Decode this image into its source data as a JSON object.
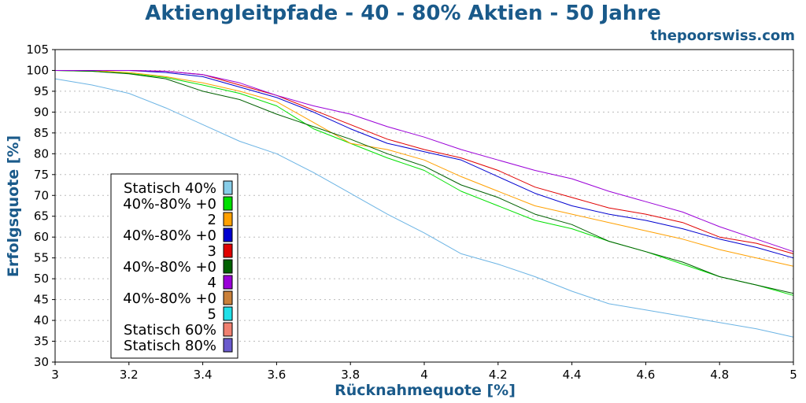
{
  "header": {
    "title": "Aktiengleitpfade - 40 - 80% Aktien - 50 Jahre",
    "brand": "thepoorswiss.com"
  },
  "chart_data": {
    "type": "line",
    "title": "Aktiengleitpfade - 40 - 80% Aktien - 50 Jahre",
    "xlabel": "Rücknahmequote [%]",
    "ylabel": "Erfolgsquote [%]",
    "xlim": [
      3,
      5
    ],
    "ylim": [
      30,
      105
    ],
    "grid": true,
    "legend_position": "lower-left",
    "x_ticks": [
      "3",
      "3.2",
      "3.4",
      "3.6",
      "3.8",
      "4",
      "4.2",
      "4.4",
      "4.6",
      "4.8",
      "5"
    ],
    "y_ticks": [
      "30",
      "35",
      "40",
      "45",
      "50",
      "55",
      "60",
      "65",
      "70",
      "75",
      "80",
      "85",
      "90",
      "95",
      "100",
      "105"
    ],
    "x": [
      3.0,
      3.1,
      3.2,
      3.3,
      3.4,
      3.5,
      3.6,
      3.7,
      3.8,
      3.9,
      4.0,
      4.1,
      4.2,
      4.3,
      4.4,
      4.5,
      4.6,
      4.7,
      4.8,
      4.9,
      5.0
    ],
    "legend_lines": [
      "Statisch 40%",
      "40%-80% +0",
      "2",
      "40%-80% +0",
      "3",
      "40%-80% +0",
      "4",
      "40%-80% +0",
      "5",
      "Statisch 60%",
      "Statisch 80%"
    ],
    "series": [
      {
        "name": "Statisch 40%",
        "color": "#6cb4e4",
        "values": [
          98,
          96.5,
          94.5,
          91,
          87,
          83,
          80,
          75.5,
          70.5,
          65.5,
          61,
          56,
          53.5,
          50.5,
          47,
          44,
          42.5,
          41,
          39.5,
          38,
          36
        ]
      },
      {
        "name": "40%-80% +0 2",
        "color": "#00e000",
        "values": [
          100,
          99.8,
          99.3,
          98.3,
          96.5,
          94.5,
          91.5,
          86,
          82.5,
          79,
          76,
          71,
          67.5,
          64,
          62,
          59,
          56.5,
          53.5,
          50.5,
          48.5,
          46
        ]
      },
      {
        "name": "40%-80% +0 3",
        "color": "#ffa000",
        "values": [
          100,
          100,
          99.5,
          98.5,
          97,
          95,
          92.5,
          87.5,
          82.5,
          81,
          78.5,
          74.5,
          71,
          67.5,
          65.5,
          63.5,
          61.5,
          59.5,
          57,
          55,
          53
        ]
      },
      {
        "name": "40%-80% +0 4",
        "color": "#0000d0",
        "values": [
          100,
          100,
          100,
          99.5,
          98.5,
          96,
          93.5,
          90,
          86,
          82.5,
          80.5,
          78.5,
          74.5,
          70.5,
          67.5,
          65.5,
          64,
          62,
          59.5,
          57.5,
          55
        ]
      },
      {
        "name": "40%-80% +0 5",
        "color": "#e00000",
        "values": [
          100,
          100,
          100,
          99.8,
          99,
          96.5,
          94,
          90.5,
          87,
          83.5,
          81,
          79,
          76,
          72,
          69.5,
          67,
          65.5,
          63.5,
          60,
          58.5,
          56
        ]
      },
      {
        "name": "Statisch 60%",
        "color": "#006000",
        "values": [
          100,
          99.8,
          99.2,
          98,
          95,
          93,
          89.5,
          86.5,
          83.5,
          80,
          77,
          72.5,
          69.5,
          65.5,
          63,
          59,
          56.5,
          54,
          50.5,
          48.5,
          46.5
        ]
      },
      {
        "name": "Statisch 80%",
        "color": "#9a00d8",
        "values": [
          100,
          100,
          100,
          99.8,
          99,
          97,
          94,
          91.5,
          89.5,
          86.5,
          84,
          81,
          78.5,
          76,
          74,
          71,
          68.5,
          66,
          62.5,
          59.5,
          56.5
        ]
      }
    ],
    "legend_swatches": [
      "#87cde8",
      "#00e000",
      "#ffa000",
      "#0000d0",
      "#e00000",
      "#006000",
      "#9a00d8",
      "#c9803a",
      "#20e0e8",
      "#f08070",
      "#6a5acd"
    ]
  }
}
